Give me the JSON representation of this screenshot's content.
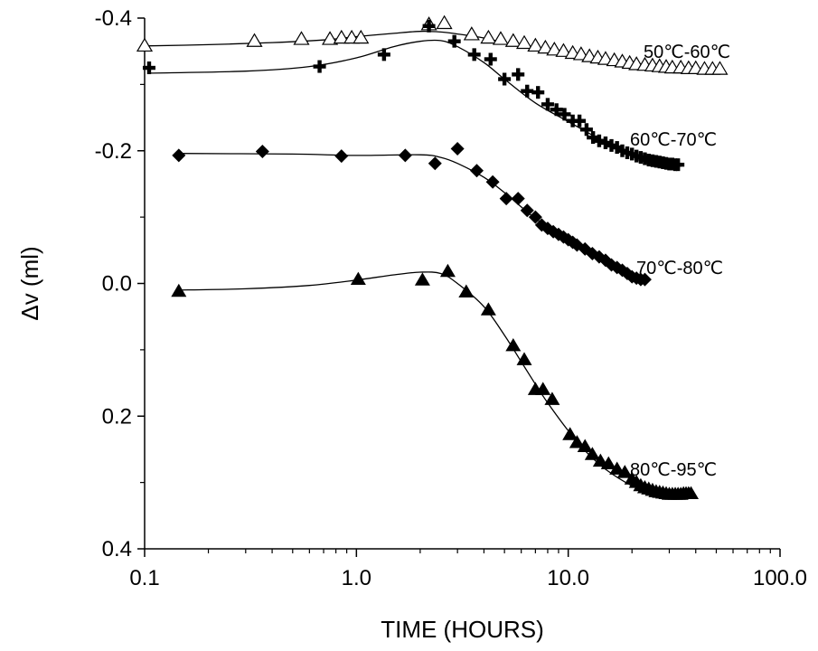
{
  "chart_data": {
    "type": "scatter",
    "title": "",
    "xlabel": "TIME (HOURS)",
    "ylabel": "Δv (ml)",
    "x_scale": "log",
    "xlim": [
      0.1,
      100
    ],
    "ylim": [
      -0.4,
      0.4
    ],
    "y_inverted": true,
    "grid": false,
    "x_ticks": [
      "0.1",
      "1.0",
      "10.0",
      "100.0"
    ],
    "y_ticks": [
      "-0.4",
      "-0.2",
      "0.0",
      "0.2",
      "0.4"
    ],
    "series": [
      {
        "name": "50℃-60℃",
        "marker": "open-triangle",
        "points": [
          [
            0.1,
            -0.358
          ],
          [
            0.33,
            -0.365
          ],
          [
            0.55,
            -0.368
          ],
          [
            0.75,
            -0.368
          ],
          [
            0.85,
            -0.37
          ],
          [
            0.95,
            -0.37
          ],
          [
            1.05,
            -0.37
          ],
          [
            2.2,
            -0.39
          ],
          [
            2.6,
            -0.392
          ],
          [
            3.5,
            -0.375
          ],
          [
            4.2,
            -0.37
          ],
          [
            4.8,
            -0.368
          ],
          [
            5.5,
            -0.365
          ],
          [
            6.2,
            -0.362
          ],
          [
            7.0,
            -0.358
          ],
          [
            7.8,
            -0.355
          ],
          [
            8.6,
            -0.352
          ],
          [
            9.5,
            -0.35
          ],
          [
            10.5,
            -0.347
          ],
          [
            11.5,
            -0.345
          ],
          [
            12.6,
            -0.342
          ],
          [
            13.8,
            -0.34
          ],
          [
            15,
            -0.338
          ],
          [
            16.5,
            -0.336
          ],
          [
            18,
            -0.334
          ],
          [
            19.5,
            -0.332
          ],
          [
            21,
            -0.33
          ],
          [
            23,
            -0.329
          ],
          [
            25,
            -0.328
          ],
          [
            27,
            -0.327
          ],
          [
            29,
            -0.326
          ],
          [
            31,
            -0.325
          ],
          [
            34,
            -0.325
          ],
          [
            37,
            -0.324
          ],
          [
            40,
            -0.324
          ],
          [
            44,
            -0.323
          ],
          [
            48,
            -0.323
          ],
          [
            52,
            -0.323
          ]
        ],
        "curve": [
          [
            0.1,
            -0.358
          ],
          [
            0.2,
            -0.36
          ],
          [
            0.4,
            -0.363
          ],
          [
            0.7,
            -0.367
          ],
          [
            1.0,
            -0.372
          ],
          [
            1.5,
            -0.377
          ],
          [
            2.0,
            -0.38
          ],
          [
            2.5,
            -0.379
          ],
          [
            3.0,
            -0.376
          ],
          [
            4.0,
            -0.37
          ],
          [
            5.0,
            -0.363
          ],
          [
            7.0,
            -0.355
          ],
          [
            10,
            -0.346
          ],
          [
            15,
            -0.337
          ],
          [
            20,
            -0.331
          ],
          [
            30,
            -0.326
          ],
          [
            52,
            -0.323
          ]
        ]
      },
      {
        "name": "60℃-70℃",
        "marker": "plus",
        "points": [
          [
            0.105,
            -0.325
          ],
          [
            0.67,
            -0.327
          ],
          [
            1.35,
            -0.345
          ],
          [
            2.2,
            -0.388
          ],
          [
            2.9,
            -0.365
          ],
          [
            3.6,
            -0.345
          ],
          [
            4.3,
            -0.338
          ],
          [
            5.0,
            -0.308
          ],
          [
            5.8,
            -0.315
          ],
          [
            6.4,
            -0.29
          ],
          [
            7.2,
            -0.288
          ],
          [
            8.0,
            -0.27
          ],
          [
            8.8,
            -0.262
          ],
          [
            9.6,
            -0.255
          ],
          [
            10.5,
            -0.245
          ],
          [
            11.3,
            -0.245
          ],
          [
            12.2,
            -0.232
          ],
          [
            13.1,
            -0.22
          ],
          [
            14.0,
            -0.215
          ],
          [
            15,
            -0.212
          ],
          [
            16,
            -0.208
          ],
          [
            17,
            -0.205
          ],
          [
            18,
            -0.2
          ],
          [
            19,
            -0.197
          ],
          [
            20,
            -0.195
          ],
          [
            21,
            -0.192
          ],
          [
            22,
            -0.19
          ],
          [
            23,
            -0.188
          ],
          [
            24,
            -0.186
          ],
          [
            25,
            -0.185
          ],
          [
            26,
            -0.184
          ],
          [
            27,
            -0.183
          ],
          [
            28,
            -0.182
          ],
          [
            29,
            -0.181
          ],
          [
            30,
            -0.18
          ],
          [
            31,
            -0.18
          ],
          [
            32,
            -0.179
          ],
          [
            33,
            -0.179
          ]
        ],
        "curve": [
          [
            0.105,
            -0.317
          ],
          [
            0.3,
            -0.32
          ],
          [
            0.6,
            -0.327
          ],
          [
            1.0,
            -0.34
          ],
          [
            1.5,
            -0.357
          ],
          [
            2.0,
            -0.365
          ],
          [
            2.5,
            -0.366
          ],
          [
            3.0,
            -0.357
          ],
          [
            4.0,
            -0.333
          ],
          [
            5.0,
            -0.308
          ],
          [
            7.0,
            -0.272
          ],
          [
            10,
            -0.244
          ],
          [
            15,
            -0.213
          ],
          [
            20,
            -0.197
          ],
          [
            25,
            -0.187
          ],
          [
            33,
            -0.18
          ]
        ]
      },
      {
        "name": "70℃-80℃",
        "marker": "diamond",
        "points": [
          [
            0.145,
            -0.193
          ],
          [
            0.36,
            -0.199
          ],
          [
            0.85,
            -0.192
          ],
          [
            1.7,
            -0.193
          ],
          [
            2.35,
            -0.181
          ],
          [
            3.0,
            -0.203
          ],
          [
            3.7,
            -0.17
          ],
          [
            4.4,
            -0.153
          ],
          [
            5.1,
            -0.128
          ],
          [
            5.8,
            -0.128
          ],
          [
            6.4,
            -0.11
          ],
          [
            7.0,
            -0.1
          ],
          [
            7.5,
            -0.088
          ],
          [
            8.0,
            -0.083
          ],
          [
            8.5,
            -0.078
          ],
          [
            9.0,
            -0.074
          ],
          [
            9.5,
            -0.07
          ],
          [
            10,
            -0.066
          ],
          [
            10.5,
            -0.062
          ],
          [
            11,
            -0.058
          ],
          [
            12,
            -0.052
          ],
          [
            13,
            -0.045
          ],
          [
            14,
            -0.04
          ],
          [
            15,
            -0.035
          ],
          [
            16,
            -0.028
          ],
          [
            17,
            -0.024
          ],
          [
            18,
            -0.02
          ],
          [
            19,
            -0.015
          ],
          [
            20,
            -0.01
          ],
          [
            21,
            -0.008
          ],
          [
            22,
            -0.006
          ],
          [
            23,
            -0.006
          ]
        ],
        "curve": [
          [
            0.145,
            -0.196
          ],
          [
            0.5,
            -0.195
          ],
          [
            1.0,
            -0.193
          ],
          [
            2.0,
            -0.194
          ],
          [
            2.5,
            -0.19
          ],
          [
            3.0,
            -0.181
          ],
          [
            4.0,
            -0.16
          ],
          [
            5.0,
            -0.137
          ],
          [
            7.0,
            -0.098
          ],
          [
            10,
            -0.067
          ],
          [
            15,
            -0.035
          ],
          [
            20,
            -0.015
          ],
          [
            23,
            -0.007
          ]
        ]
      },
      {
        "name": "80℃-95℃",
        "marker": "filled-triangle",
        "points": [
          [
            0.145,
            0.012
          ],
          [
            1.02,
            -0.006
          ],
          [
            2.05,
            -0.005
          ],
          [
            2.7,
            -0.018
          ],
          [
            3.3,
            0.013
          ],
          [
            4.2,
            0.04
          ],
          [
            5.5,
            0.094
          ],
          [
            6.2,
            0.115
          ],
          [
            7.0,
            0.16
          ],
          [
            7.6,
            0.16
          ],
          [
            8.4,
            0.175
          ],
          [
            10.2,
            0.228
          ],
          [
            11.0,
            0.24
          ],
          [
            12.0,
            0.246
          ],
          [
            13.0,
            0.258
          ],
          [
            14.2,
            0.268
          ],
          [
            15.5,
            0.272
          ],
          [
            17,
            0.28
          ],
          [
            18.5,
            0.285
          ],
          [
            20,
            0.295
          ],
          [
            21,
            0.3
          ],
          [
            22,
            0.305
          ],
          [
            23,
            0.308
          ],
          [
            24,
            0.31
          ],
          [
            25,
            0.312
          ],
          [
            26,
            0.314
          ],
          [
            27,
            0.315
          ],
          [
            28,
            0.316
          ],
          [
            29,
            0.317
          ],
          [
            30,
            0.318
          ],
          [
            31,
            0.318
          ],
          [
            32,
            0.318
          ],
          [
            33,
            0.318
          ],
          [
            34,
            0.318
          ],
          [
            35,
            0.317
          ],
          [
            36,
            0.317
          ],
          [
            37,
            0.317
          ],
          [
            38,
            0.317
          ]
        ],
        "curve": [
          [
            0.145,
            0.01
          ],
          [
            0.3,
            0.008
          ],
          [
            0.6,
            0.003
          ],
          [
            1.0,
            -0.005
          ],
          [
            1.5,
            -0.013
          ],
          [
            2.0,
            -0.017
          ],
          [
            2.5,
            -0.015
          ],
          [
            3.0,
            0.0
          ],
          [
            4.0,
            0.035
          ],
          [
            5.0,
            0.078
          ],
          [
            6.0,
            0.118
          ],
          [
            7.0,
            0.152
          ],
          [
            8.0,
            0.18
          ],
          [
            10,
            0.222
          ],
          [
            12,
            0.252
          ],
          [
            15,
            0.28
          ],
          [
            20,
            0.305
          ],
          [
            25,
            0.316
          ],
          [
            30,
            0.32
          ],
          [
            38,
            0.32
          ]
        ]
      }
    ]
  }
}
